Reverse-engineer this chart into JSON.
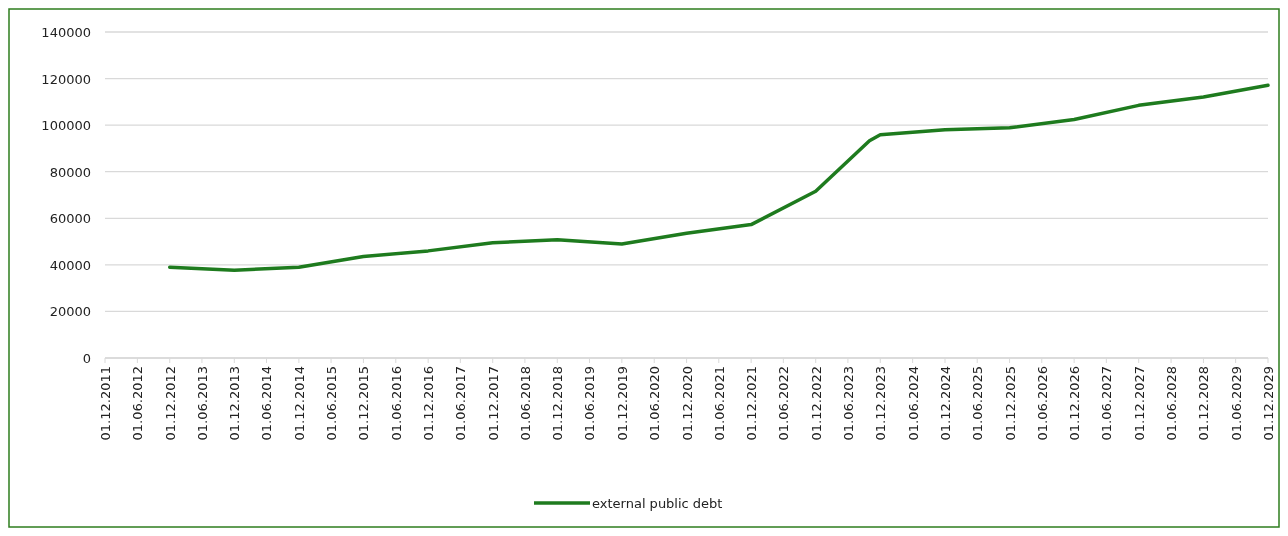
{
  "chart_data": {
    "type": "line",
    "x": [
      "2012-12-01",
      "2013-12-01",
      "2014-12-01",
      "2015-12-01",
      "2016-12-01",
      "2017-12-01",
      "2018-12-01",
      "2019-12-01",
      "2020-12-01",
      "2021-12-01",
      "2022-12-01",
      "2023-10-01",
      "2023-12-01",
      "2024-12-01",
      "2025-12-01",
      "2026-12-01",
      "2027-12-01",
      "2028-12-01",
      "2029-12-01"
    ],
    "series": [
      {
        "name": "external public debt",
        "color": "#1e7b1e",
        "values": [
          39000,
          37700,
          39000,
          43600,
          46000,
          49500,
          50800,
          49000,
          53600,
          57300,
          71600,
          93300,
          95900,
          98000,
          98900,
          102400,
          108500,
          112100,
          117100
        ]
      }
    ],
    "xlim": [
      "2011-12-01",
      "2029-12-01"
    ],
    "xticks": [
      {
        "value": "2011-12-01",
        "label": "01.12.2011"
      },
      {
        "value": "2012-06-01",
        "label": "01.06.2012"
      },
      {
        "value": "2012-12-01",
        "label": "01.12.2012"
      },
      {
        "value": "2013-06-01",
        "label": "01.06.2013"
      },
      {
        "value": "2013-12-01",
        "label": "01.12.2013"
      },
      {
        "value": "2014-06-01",
        "label": "01.06.2014"
      },
      {
        "value": "2014-12-01",
        "label": "01.12.2014"
      },
      {
        "value": "2015-06-01",
        "label": "01.06.2015"
      },
      {
        "value": "2015-12-01",
        "label": "01.12.2015"
      },
      {
        "value": "2016-06-01",
        "label": "01.06.2016"
      },
      {
        "value": "2016-12-01",
        "label": "01.12.2016"
      },
      {
        "value": "2017-06-01",
        "label": "01.06.2017"
      },
      {
        "value": "2017-12-01",
        "label": "01.12.2017"
      },
      {
        "value": "2018-06-01",
        "label": "01.06.2018"
      },
      {
        "value": "2018-12-01",
        "label": "01.12.2018"
      },
      {
        "value": "2019-06-01",
        "label": "01.06.2019"
      },
      {
        "value": "2019-12-01",
        "label": "01.12.2019"
      },
      {
        "value": "2020-06-01",
        "label": "01.06.2020"
      },
      {
        "value": "2020-12-01",
        "label": "01.12.2020"
      },
      {
        "value": "2021-06-01",
        "label": "01.06.2021"
      },
      {
        "value": "2021-12-01",
        "label": "01.12.2021"
      },
      {
        "value": "2022-06-01",
        "label": "01.06.2022"
      },
      {
        "value": "2022-12-01",
        "label": "01.12.2022"
      },
      {
        "value": "2023-06-01",
        "label": "01.06.2023"
      },
      {
        "value": "2023-12-01",
        "label": "01.12.2023"
      },
      {
        "value": "2024-06-01",
        "label": "01.06.2024"
      },
      {
        "value": "2024-12-01",
        "label": "01.12.2024"
      },
      {
        "value": "2025-06-01",
        "label": "01.06.2025"
      },
      {
        "value": "2025-12-01",
        "label": "01.12.2025"
      },
      {
        "value": "2026-06-01",
        "label": "01.06.2026"
      },
      {
        "value": "2026-12-01",
        "label": "01.12.2026"
      },
      {
        "value": "2027-06-01",
        "label": "01.06.2027"
      },
      {
        "value": "2027-12-01",
        "label": "01.12.2027"
      },
      {
        "value": "2028-06-01",
        "label": "01.06.2028"
      },
      {
        "value": "2028-12-01",
        "label": "01.12.2028"
      },
      {
        "value": "2029-06-01",
        "label": "01.06.2029"
      },
      {
        "value": "2029-12-01",
        "label": "01.12.2029"
      }
    ],
    "ylim": [
      0,
      140000
    ],
    "yticks": [
      0,
      20000,
      40000,
      60000,
      80000,
      100000,
      120000,
      140000
    ],
    "grid": "y",
    "legend": "bottom"
  }
}
